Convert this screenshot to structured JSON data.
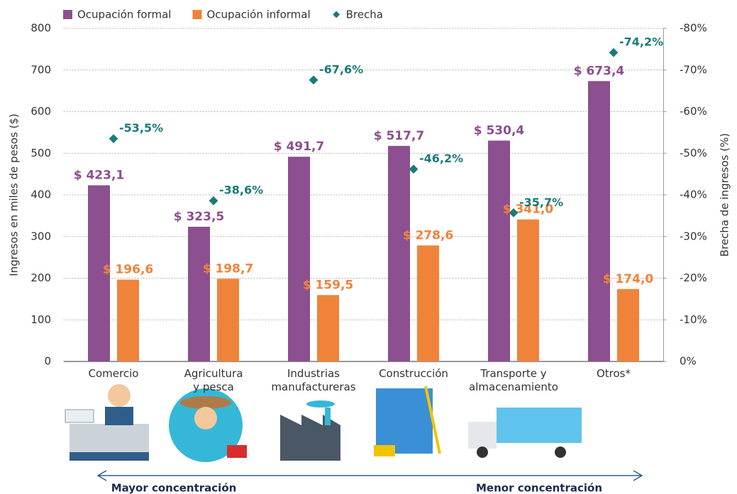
{
  "chart_data": {
    "type": "bar",
    "categories": [
      "Comercio",
      "Agricultura\ny pesca",
      "Industrias\nmanufactureras",
      "Construcción",
      "Transporte y\nalmacenamiento",
      "Otros*"
    ],
    "series": [
      {
        "name": "Ocupación formal",
        "color": "#8c4f8f",
        "values": [
          423.1,
          323.5,
          491.7,
          517.7,
          530.4,
          673.4
        ],
        "value_labels": [
          "$ 423,1",
          "$ 323,5",
          "$ 491,7",
          "$ 517,7",
          "$ 530,4",
          "$ 673,4"
        ]
      },
      {
        "name": "Ocupación informal",
        "color": "#f0833a",
        "values": [
          196.6,
          198.7,
          159.5,
          278.6,
          341.0,
          174.0
        ],
        "value_labels": [
          "$ 196,6",
          "$ 198,7",
          "$ 159,5",
          "$ 278,6",
          "$ 341,0",
          "$ 174,0"
        ]
      },
      {
        "name": "Brecha",
        "color": "#1a7a7a",
        "axis": "y2",
        "type": "scatter",
        "values": [
          -53.5,
          -38.6,
          -67.6,
          -46.2,
          -35.7,
          -74.2
        ],
        "value_labels": [
          "-53,5%",
          "-38,6%",
          "-67,6%",
          "-46,2%",
          "-35,7%",
          "-74,2%"
        ]
      }
    ],
    "ylabel": "Ingresos en miles de pesos ($)",
    "y2label": "Brecha de ingresos (%)",
    "ylim": [
      0,
      800
    ],
    "yticks": [
      0,
      100,
      200,
      300,
      400,
      500,
      600,
      700,
      800
    ],
    "y2lim": [
      0,
      -80
    ],
    "y2ticks": [
      {
        "value": 0,
        "label": "0%"
      },
      {
        "value": -10,
        "label": "-10%"
      },
      {
        "value": -20,
        "label": "-20%"
      },
      {
        "value": -30,
        "label": "-30%"
      },
      {
        "value": -40,
        "label": "-40%"
      },
      {
        "value": -50,
        "label": "-50%"
      },
      {
        "value": -60,
        "label": "-60%"
      },
      {
        "value": -70,
        "label": "-70%"
      },
      {
        "value": -80,
        "label": "-80%"
      }
    ],
    "grid": true,
    "legend": "top-left",
    "left_note": "Mayor concentración",
    "right_note": "Menor concentración"
  }
}
